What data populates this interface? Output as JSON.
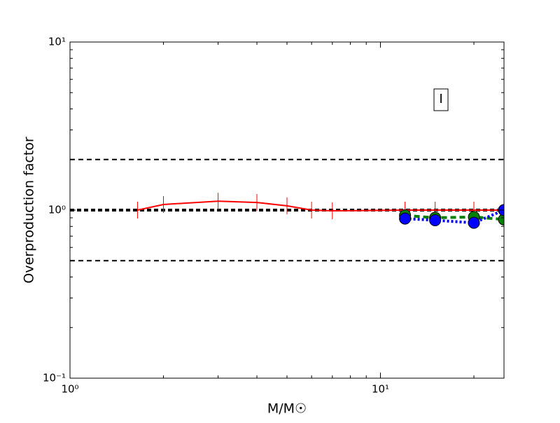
{
  "chart_data": {
    "type": "line",
    "xlabel": "M/M☉",
    "ylabel": "Overproduction factor",
    "annotation": "I",
    "log_x": true,
    "log_y": true,
    "xlim": [
      1,
      25
    ],
    "ylim": [
      0.1,
      10
    ],
    "xticks": [
      {
        "value": 1,
        "label": "10⁰"
      },
      {
        "value": 10,
        "label": "10¹"
      }
    ],
    "yticks": [
      {
        "value": 0.1,
        "label": "10⁻¹"
      },
      {
        "value": 1,
        "label": "10⁰"
      },
      {
        "value": 10,
        "label": "10¹"
      }
    ],
    "xminor": [
      2,
      3,
      4,
      5,
      6,
      7,
      8,
      9,
      20
    ],
    "yminor": [
      0.2,
      0.3,
      0.4,
      0.5,
      0.6,
      0.7,
      0.8,
      0.9,
      2,
      3,
      4,
      5,
      6,
      7,
      8,
      9
    ],
    "reference_lines": [
      {
        "value": 2,
        "style": "dashed"
      },
      {
        "value": 0.5,
        "style": "dashed"
      },
      {
        "value": 1,
        "style": "thick-dotted"
      }
    ],
    "series": [
      {
        "color": "#ff0000",
        "marker": "vline",
        "dash": "solid",
        "x": [
          1.65,
          2,
          3,
          4,
          5,
          6,
          7,
          12,
          15,
          20,
          25
        ],
        "values": [
          1.0,
          1.08,
          1.13,
          1.11,
          1.06,
          1.0,
          0.99,
          1.0,
          1.0,
          1.0,
          1.0
        ]
      },
      {
        "color": "#008000",
        "marker": "circle",
        "dash": "dashed",
        "x": [
          12,
          15,
          20,
          25
        ],
        "values": [
          0.93,
          0.9,
          0.91,
          0.88
        ]
      },
      {
        "color": "#0000ff",
        "marker": "circle",
        "dash": "dotted",
        "x": [
          12,
          15,
          20,
          25
        ],
        "values": [
          0.89,
          0.87,
          0.84,
          1.0
        ]
      }
    ]
  }
}
